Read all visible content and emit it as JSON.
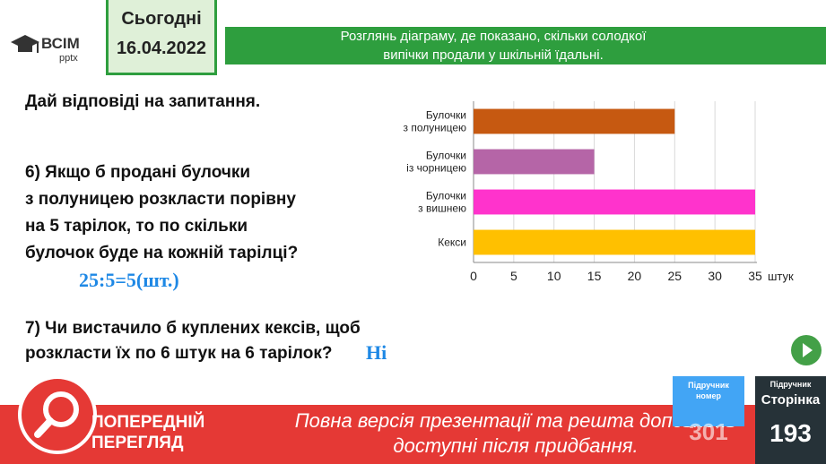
{
  "logo": {
    "text": "ВСІМ",
    "sub": "pptx"
  },
  "date": {
    "line1": "Сьогодні",
    "line2": "16.04.2022"
  },
  "banner": {
    "line1": "Розглянь діаграму, де показано, скільки солодкої",
    "line2": "випічки продали у  шкільній їдальні."
  },
  "questions": {
    "heading": "Дай відповіді на запитання.",
    "q6_lines": [
      "6) Якщо  б продані булочки",
      "з  полуницею розкласти порівну",
      "на 5 тарілок, то по скільки",
      "булочок буде на кожній тарілці?"
    ],
    "a6": "25:5=5(шт.)",
    "q7_lines": [
      "7) Чи вистачило  б куплених кексів, щоб",
      "розкласти їх по 6  штук на 6 тарілок?"
    ],
    "a7": "Ні"
  },
  "chart_data": {
    "type": "bar",
    "orientation": "horizontal",
    "categories": [
      [
        "Булочки",
        "з полуницею"
      ],
      [
        "Булочки",
        "із чорницею"
      ],
      [
        "Булочки",
        "з вишнею"
      ],
      [
        "Кекси"
      ]
    ],
    "values": [
      25,
      15,
      35,
      35
    ],
    "colors": [
      "#c65911",
      "#b565a7",
      "#ff33cc",
      "#ffc000"
    ],
    "xlim": [
      0,
      35
    ],
    "xticks": [
      0,
      5,
      10,
      15,
      20,
      25,
      30,
      35
    ],
    "xunit": "штук",
    "grid": true
  },
  "bottom": {
    "preview": [
      "ПОПЕРЕДНІЙ",
      "ПЕРЕГЛЯД"
    ],
    "text_line1": "Повна версія презентації та решта доповнень",
    "text_line2": "доступні після придбання.",
    "tb_number_label": [
      "Підручник",
      "номер"
    ],
    "tb_number": "301",
    "tb_page_label": "Підручник",
    "tb_page_word": "Сторінка",
    "tb_page": "193"
  }
}
